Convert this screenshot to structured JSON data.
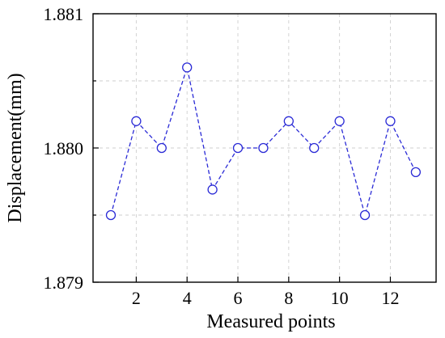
{
  "chart_data": {
    "type": "line",
    "xlabel": "Measured points",
    "ylabel": "Displacement(mm)",
    "xlim": [
      0.3,
      13.8
    ],
    "ylim": [
      1.879,
      1.881
    ],
    "x_ticks": [
      2,
      4,
      6,
      8,
      10,
      12
    ],
    "x_tick_labels": [
      "2",
      "4",
      "6",
      "8",
      "10",
      "12"
    ],
    "y_ticks": [
      1.879,
      1.88,
      1.881
    ],
    "y_tick_labels": [
      "1.879",
      "1.880",
      "1.881"
    ],
    "grid": true,
    "series": [
      {
        "color": "#2b2bd6",
        "marker": "open-circle",
        "line_style": "dashed",
        "x": [
          1,
          2,
          3,
          4,
          5,
          6,
          7,
          8,
          9,
          10,
          11,
          12,
          13
        ],
        "values": [
          1.8795,
          1.8802,
          1.88,
          1.8806,
          1.87969,
          1.88,
          1.88,
          1.8802,
          1.88,
          1.8802,
          1.8795,
          1.8802,
          1.87982
        ]
      }
    ]
  }
}
